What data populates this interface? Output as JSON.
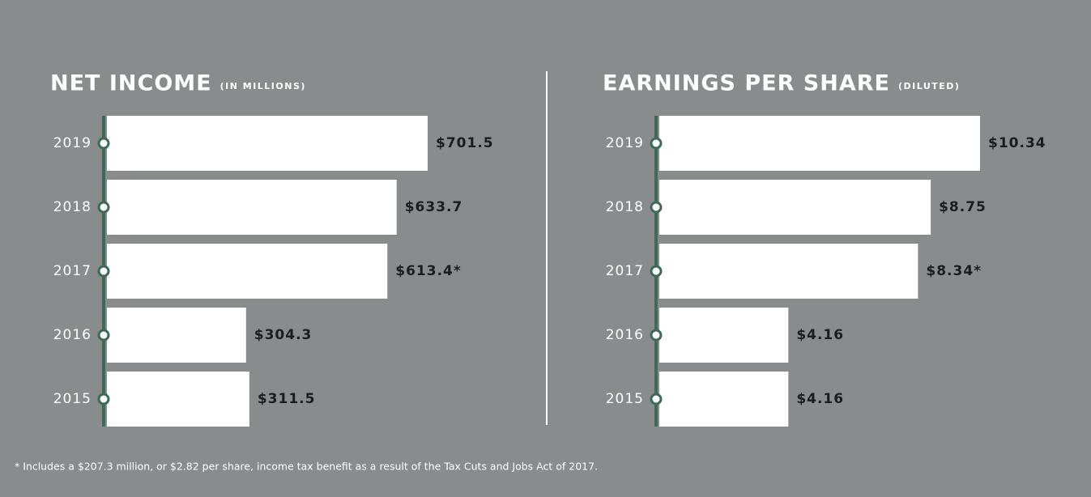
{
  "chart_data": [
    {
      "type": "bar",
      "title": "NET INCOME",
      "subtitle": "(IN MILLIONS)",
      "categories": [
        "2019",
        "2018",
        "2017",
        "2016",
        "2015"
      ],
      "values": [
        701.5,
        633.7,
        613.4,
        304.3,
        311.5
      ],
      "value_labels": [
        "$701.5",
        "$633.7",
        "$613.4*",
        "$304.3",
        "$311.5"
      ],
      "color": "#ffffff",
      "orientation": "horizontal"
    },
    {
      "type": "bar",
      "title": "EARNINGS PER SHARE",
      "subtitle": "(DILUTED)",
      "categories": [
        "2019",
        "2018",
        "2017",
        "2016",
        "2015"
      ],
      "values": [
        10.34,
        8.75,
        8.34,
        4.16,
        4.16
      ],
      "value_labels": [
        "$10.34",
        "$8.75",
        "$8.34*",
        "$4.16",
        "$4.16"
      ],
      "color": "#ffffff",
      "orientation": "horizontal"
    }
  ],
  "footnote": "* Includes a $207.3 million, or $2.82 per share, income tax benefit as a result of the Tax Cuts and Jobs Act of 2017."
}
